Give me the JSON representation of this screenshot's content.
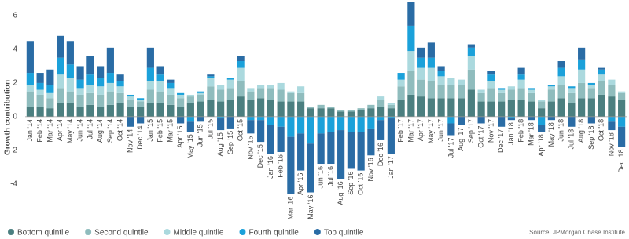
{
  "chart_data": {
    "type": "stacked-bar",
    "y_label": "Growth contribution",
    "source": "Source: JPMorgan Chase Institute",
    "ylim": [
      -5.5,
      6.7
    ],
    "yticks": [
      -4,
      -2,
      0,
      2,
      4,
      6
    ],
    "grid": false,
    "legend": "bottom-left",
    "categories": [
      "Jan '14",
      "Feb '14",
      "Mar '14",
      "Apr '14",
      "May '14",
      "Jun '14",
      "Jul '14",
      "Aug '14",
      "Sep '14",
      "Oct '14",
      "Nov '14",
      "Dec '14",
      "Jan '15",
      "Feb '15",
      "Mar '15",
      "Apr '15",
      "May '15",
      "Jun '15",
      "Jul '15",
      "Aug '15",
      "Sep '15",
      "Oct '15",
      "Nov '15",
      "Dec '15",
      "Jan '16",
      "Feb '16",
      "Mar '16",
      "Apr '16",
      "May '16",
      "Jun '16",
      "Jul '16",
      "Aug '16",
      "Sep '16",
      "Oct '16",
      "Nov '16",
      "Dec '16",
      "Jan '17",
      "Feb '17",
      "Mar '17",
      "Apr '17",
      "May '17",
      "Jun '17",
      "Jul '17",
      "Aug '17",
      "Sep '17",
      "Oct '17",
      "Nov '17",
      "Dec '17",
      "Jan '18",
      "Feb '18",
      "Mar '18",
      "Apr '18",
      "May '18",
      "Jun '18",
      "Jul '18",
      "Aug '18",
      "Sep '18",
      "Oct '18",
      "Nov '18",
      "Dec '18"
    ],
    "series": [
      {
        "name": "Bottom quintile",
        "color": "#4b7f80",
        "values": [
          0.6,
          0.6,
          0.5,
          0.8,
          0.8,
          0.6,
          0.7,
          0.6,
          0.7,
          0.8,
          0.6,
          0.6,
          0.8,
          0.8,
          0.7,
          0.6,
          0.8,
          0.9,
          1.0,
          0.9,
          1.0,
          1.2,
          1.0,
          1.1,
          1.0,
          0.9,
          0.9,
          0.9,
          0.5,
          0.5,
          0.5,
          0.3,
          0.3,
          0.4,
          0.5,
          0.6,
          0.5,
          1.0,
          1.3,
          1.2,
          1.1,
          1.1,
          1.1,
          1.1,
          1.6,
          0.9,
          0.9,
          0.9,
          1.0,
          1.0,
          0.9,
          0.5,
          0.9,
          1.1,
          0.8,
          1.1,
          1.1,
          1.3,
          1.2,
          1.0
        ]
      },
      {
        "name": "Second quintile",
        "color": "#8fbcbd",
        "values": [
          0.9,
          0.7,
          0.6,
          0.9,
          0.7,
          0.7,
          0.7,
          0.7,
          0.8,
          0.6,
          0.4,
          0.3,
          0.8,
          0.7,
          0.6,
          0.5,
          0.4,
          0.4,
          0.8,
          0.7,
          0.7,
          0.9,
          0.5,
          0.6,
          0.7,
          0.7,
          0.5,
          0.5,
          0.1,
          0.2,
          0.1,
          0.1,
          0.1,
          0.1,
          0.2,
          0.4,
          0.2,
          0.8,
          1.4,
          1.0,
          1.0,
          0.8,
          0.8,
          0.8,
          1.2,
          0.5,
          0.8,
          0.5,
          0.6,
          0.7,
          0.5,
          0.4,
          0.7,
          0.8,
          0.6,
          0.9,
          0.6,
          0.8,
          0.7,
          0.4
        ]
      },
      {
        "name": "Middle quintile",
        "color": "#abd9de",
        "values": [
          0.4,
          0.3,
          0.3,
          0.8,
          0.8,
          0.4,
          0.5,
          0.5,
          0.5,
          0.4,
          0.2,
          0.1,
          0.5,
          0.6,
          0.4,
          0.2,
          0.1,
          0.1,
          0.5,
          0.3,
          0.5,
          0.8,
          0.2,
          0.2,
          0.2,
          0.4,
          0.1,
          0.4,
          0.0,
          0.0,
          0.0,
          0.0,
          0.0,
          0.0,
          0.0,
          0.2,
          0.1,
          0.4,
          1.2,
          0.7,
          0.8,
          0.5,
          0.4,
          0.3,
          0.8,
          0.2,
          0.4,
          0.2,
          0.2,
          0.5,
          0.2,
          0.1,
          0.2,
          0.5,
          0.3,
          0.8,
          0.2,
          0.4,
          0.3,
          0.1
        ]
      },
      {
        "name": "Fourth quintile",
        "color": "#1ba1da",
        "values": [
          0.7,
          0.4,
          0.5,
          1.0,
          0.8,
          0.5,
          0.6,
          0.5,
          0.6,
          0.3,
          0.1,
          0.1,
          0.8,
          0.4,
          0.3,
          0.1,
          -0.3,
          0.1,
          0.1,
          -0.1,
          0.1,
          0.4,
          -0.2,
          -0.2,
          -0.5,
          -0.6,
          -1.2,
          -1.0,
          -1.6,
          -1.0,
          -0.9,
          -0.8,
          -0.9,
          -0.9,
          -0.7,
          -0.2,
          -0.1,
          0.4,
          1.5,
          0.6,
          0.6,
          0.3,
          -0.4,
          0.0,
          0.5,
          0.0,
          0.4,
          0.1,
          -0.1,
          0.3,
          0.1,
          -0.5,
          0.1,
          0.5,
          0.1,
          0.6,
          0.1,
          0.3,
          -0.3,
          -0.6
        ]
      },
      {
        "name": "Top quintile",
        "color": "#2a6ca5",
        "values": [
          1.9,
          0.6,
          0.9,
          1.3,
          1.4,
          0.8,
          1.1,
          0.7,
          1.5,
          0.4,
          -0.6,
          -0.4,
          1.2,
          0.5,
          0.2,
          -0.4,
          -0.6,
          -0.3,
          0.1,
          -0.7,
          -0.7,
          0.3,
          -0.8,
          -1.3,
          -1.7,
          -1.5,
          -3.4,
          -2.2,
          -2.9,
          -1.8,
          -1.9,
          -2.9,
          -2.2,
          -2.3,
          -1.6,
          -1.2,
          -2.1,
          0.0,
          1.4,
          0.6,
          0.9,
          0.3,
          -0.7,
          -0.5,
          0.2,
          -0.4,
          0.2,
          -0.6,
          -0.1,
          0.4,
          -0.2,
          -0.4,
          -0.2,
          0.4,
          -0.6,
          0.7,
          -0.4,
          0.1,
          -0.5,
          -1.2
        ]
      }
    ]
  }
}
